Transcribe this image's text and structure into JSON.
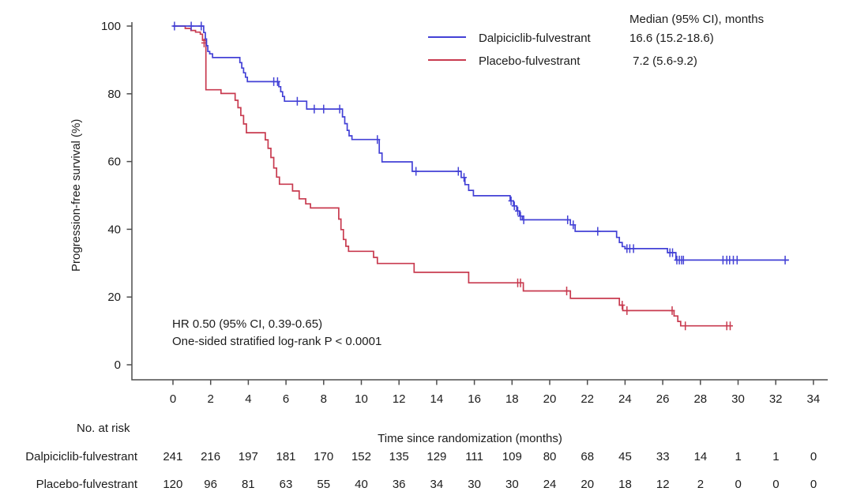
{
  "chart_data": {
    "type": "line",
    "subtype": "kaplan-meier-step",
    "title": "",
    "xlabel": "Time since randomization (months)",
    "ylabel": "Progression-free survival (%)",
    "xlim": [
      0,
      34
    ],
    "ylim": [
      0,
      100
    ],
    "xticks": [
      0,
      2,
      4,
      6,
      8,
      10,
      12,
      14,
      16,
      18,
      20,
      22,
      24,
      26,
      28,
      30,
      32,
      34
    ],
    "yticks": [
      0,
      20,
      40,
      60,
      80,
      100
    ],
    "grid": false,
    "legend_position": "top-right",
    "legend_header": "Median (95% CI), months",
    "axis_color": "#4d4d4d",
    "annotations": [
      "HR 0.50 (95% CI, 0.39-0.65)",
      "One-sided stratified log-rank P < 0.0001"
    ],
    "series": [
      {
        "name": "Placebo-fulvestrant",
        "median": " 7.2 (5.6-9.2)",
        "median_value": 7.2,
        "median_ci": [
          5.6,
          9.2
        ],
        "color": "#c83a4f",
        "steps": [
          [
            0,
            100
          ],
          [
            0.65,
            99.3
          ],
          [
            0.95,
            98.7
          ],
          [
            1.2,
            98.2
          ],
          [
            1.45,
            97.6
          ],
          [
            1.57,
            95.8
          ],
          [
            1.75,
            81.2
          ],
          [
            2.55,
            80.1
          ],
          [
            3.3,
            78.1
          ],
          [
            3.45,
            75.9
          ],
          [
            3.6,
            73.6
          ],
          [
            3.75,
            71.1
          ],
          [
            3.9,
            68.5
          ],
          [
            4.9,
            66.4
          ],
          [
            5.05,
            63.9
          ],
          [
            5.2,
            61.2
          ],
          [
            5.35,
            58.1
          ],
          [
            5.5,
            55.4
          ],
          [
            5.65,
            53.3
          ],
          [
            6.35,
            51.3
          ],
          [
            6.7,
            49.0
          ],
          [
            7.05,
            47.5
          ],
          [
            7.3,
            46.3
          ],
          [
            8.8,
            43.0
          ],
          [
            8.92,
            39.9
          ],
          [
            9.05,
            37.0
          ],
          [
            9.18,
            35.0
          ],
          [
            9.32,
            33.5
          ],
          [
            10.65,
            31.7
          ],
          [
            10.85,
            29.9
          ],
          [
            12.8,
            27.3
          ],
          [
            15.7,
            24.2
          ],
          [
            18.6,
            21.8
          ],
          [
            21.1,
            19.6
          ],
          [
            23.7,
            17.6
          ],
          [
            23.88,
            16.0
          ],
          [
            26.6,
            14.4
          ],
          [
            26.8,
            12.8
          ],
          [
            26.95,
            11.5
          ],
          [
            29.7,
            11.5
          ]
        ],
        "censors": [
          [
            1.65,
            95.0
          ],
          [
            18.3,
            24.2
          ],
          [
            18.45,
            24.2
          ],
          [
            20.9,
            21.8
          ],
          [
            23.85,
            17.6
          ],
          [
            24.1,
            16.0
          ],
          [
            26.5,
            16.0
          ],
          [
            27.2,
            11.5
          ],
          [
            29.4,
            11.5
          ],
          [
            29.58,
            11.5
          ]
        ]
      },
      {
        "name": "Dalpiciclib-fulvestrant",
        "median": "16.6 (15.2-18.6)",
        "median_value": 16.6,
        "median_ci": [
          15.2,
          18.6
        ],
        "color": "#4341d6",
        "steps": [
          [
            0,
            100
          ],
          [
            1.63,
            98.1
          ],
          [
            1.72,
            96.2
          ],
          [
            1.78,
            94.2
          ],
          [
            1.85,
            92.5
          ],
          [
            1.95,
            91.8
          ],
          [
            2.1,
            90.7
          ],
          [
            3.55,
            89.2
          ],
          [
            3.65,
            87.6
          ],
          [
            3.75,
            86.2
          ],
          [
            3.85,
            84.9
          ],
          [
            3.95,
            83.6
          ],
          [
            5.62,
            82.1
          ],
          [
            5.72,
            80.6
          ],
          [
            5.82,
            79.2
          ],
          [
            5.92,
            77.8
          ],
          [
            7.1,
            75.5
          ],
          [
            9.0,
            73.2
          ],
          [
            9.12,
            71.2
          ],
          [
            9.25,
            69.2
          ],
          [
            9.35,
            67.6
          ],
          [
            9.5,
            66.5
          ],
          [
            10.95,
            62.5
          ],
          [
            11.1,
            59.9
          ],
          [
            12.7,
            57.1
          ],
          [
            15.3,
            55.3
          ],
          [
            15.5,
            53.2
          ],
          [
            15.7,
            51.5
          ],
          [
            15.95,
            49.9
          ],
          [
            17.9,
            48.4
          ],
          [
            18.08,
            46.9
          ],
          [
            18.25,
            45.4
          ],
          [
            18.4,
            43.9
          ],
          [
            18.55,
            42.8
          ],
          [
            21.1,
            41.3
          ],
          [
            21.35,
            39.4
          ],
          [
            23.55,
            37.6
          ],
          [
            23.7,
            36.1
          ],
          [
            23.85,
            34.9
          ],
          [
            24.0,
            34.3
          ],
          [
            26.25,
            33.1
          ],
          [
            26.7,
            30.9
          ],
          [
            32.7,
            30.9
          ]
        ],
        "censors": [
          [
            0.08,
            100
          ],
          [
            0.97,
            100
          ],
          [
            1.5,
            100
          ],
          [
            5.35,
            83.6
          ],
          [
            5.55,
            83.6
          ],
          [
            6.6,
            77.8
          ],
          [
            7.5,
            75.5
          ],
          [
            8.0,
            75.5
          ],
          [
            8.85,
            75.5
          ],
          [
            10.85,
            66.5
          ],
          [
            12.9,
            57.1
          ],
          [
            15.15,
            57.1
          ],
          [
            15.45,
            55.3
          ],
          [
            17.95,
            48.4
          ],
          [
            18.12,
            46.9
          ],
          [
            18.3,
            45.4
          ],
          [
            18.45,
            43.9
          ],
          [
            18.62,
            42.8
          ],
          [
            20.95,
            42.8
          ],
          [
            21.25,
            41.3
          ],
          [
            22.55,
            39.4
          ],
          [
            24.1,
            34.3
          ],
          [
            24.25,
            34.3
          ],
          [
            24.45,
            34.3
          ],
          [
            26.38,
            33.1
          ],
          [
            26.52,
            33.1
          ],
          [
            26.75,
            30.9
          ],
          [
            26.88,
            30.9
          ],
          [
            27.0,
            30.9
          ],
          [
            27.1,
            30.9
          ],
          [
            29.2,
            30.9
          ],
          [
            29.4,
            30.9
          ],
          [
            29.55,
            30.9
          ],
          [
            29.75,
            30.9
          ],
          [
            29.95,
            30.9
          ],
          [
            32.5,
            30.9
          ]
        ]
      }
    ],
    "risk_table": {
      "title": "No. at risk",
      "times": [
        0,
        2,
        4,
        6,
        8,
        10,
        12,
        14,
        16,
        18,
        20,
        22,
        24,
        26,
        28,
        30,
        32,
        34
      ],
      "rows": [
        {
          "label": "Dalpiciclib-fulvestrant",
          "counts": [
            241,
            216,
            197,
            181,
            170,
            152,
            135,
            129,
            111,
            109,
            80,
            68,
            45,
            33,
            14,
            1,
            1,
            0
          ]
        },
        {
          "label": "Placebo-fulvestrant",
          "counts": [
            120,
            96,
            81,
            63,
            55,
            40,
            36,
            34,
            30,
            30,
            24,
            20,
            18,
            12,
            2,
            0,
            0,
            0
          ]
        }
      ]
    }
  }
}
